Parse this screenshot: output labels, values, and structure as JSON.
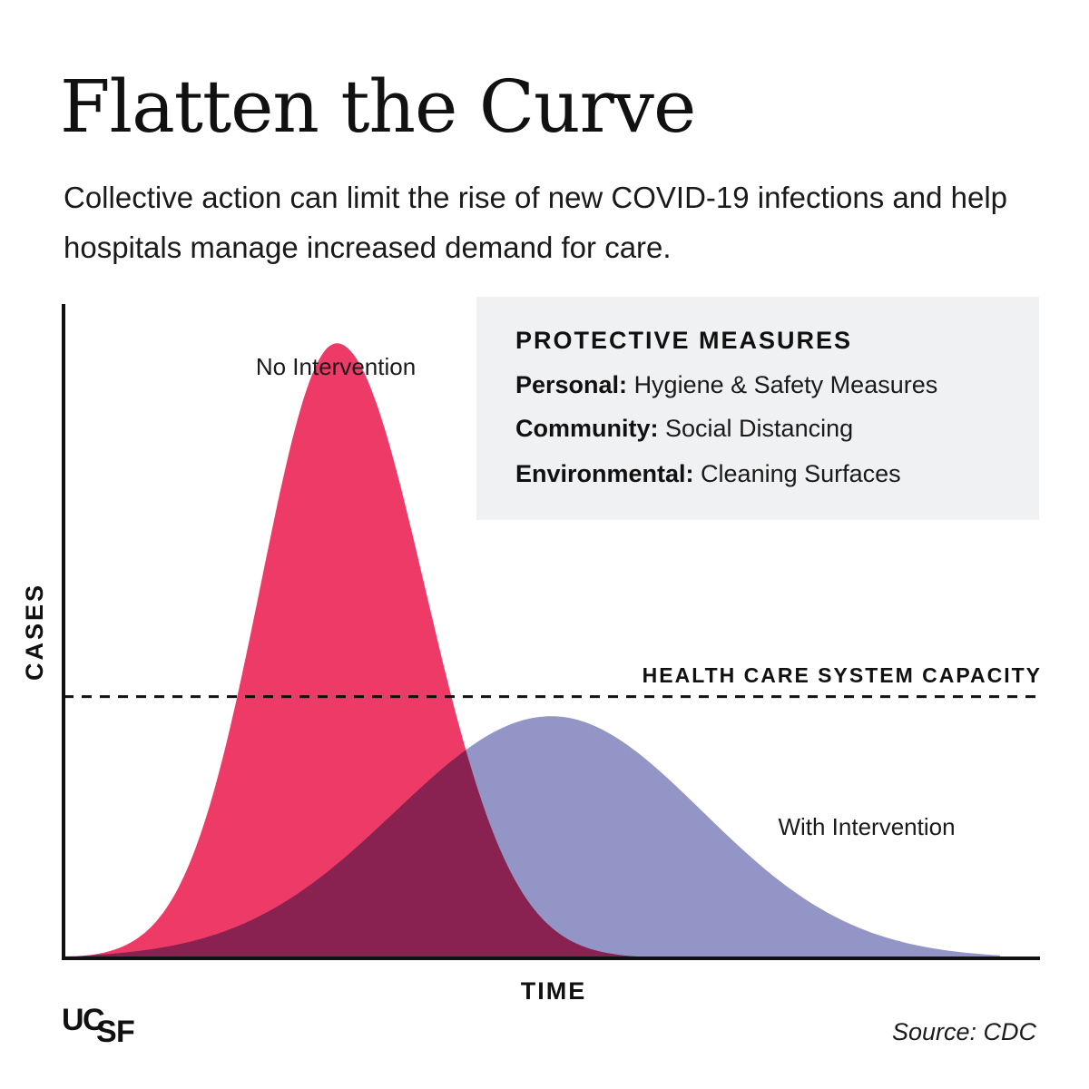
{
  "title": "Flatten the Curve",
  "subtitle": "Collective action can limit the rise of new COVID-19 infections and help hospitals manage increased demand for care.",
  "measures": {
    "heading": "PROTECTIVE MEASURES",
    "items": [
      {
        "label": "Personal:",
        "text": "Hygiene & Safety Measures"
      },
      {
        "label": "Community:",
        "text": "Social Distancing"
      },
      {
        "label": "Environmental:",
        "text": "Cleaning Surfaces"
      }
    ]
  },
  "source": "Source: CDC",
  "logo": {
    "text": "UCSF",
    "letters": [
      "U",
      "C",
      "S",
      "F"
    ]
  },
  "colors": {
    "no_intervention": "#ee3a66",
    "with_intervention": "#8a8cc2",
    "axis": "#111111"
  },
  "chart_data": {
    "type": "area",
    "xlabel": "TIME",
    "ylabel": "CASES",
    "x_ticks": false,
    "y_ticks": false,
    "series": [
      {
        "name": "No Intervention",
        "shape": "sharp-peak",
        "peak_x": 0.28,
        "peak_y": 0.94
      },
      {
        "name": "With Intervention",
        "shape": "flat-peak",
        "peak_x": 0.5,
        "peak_y": 0.37
      }
    ],
    "reference_line": {
      "label": "HEALTH CARE SYSTEM CAPACITY",
      "y": 0.4,
      "style": "dashed"
    },
    "xlim": [
      0,
      1
    ],
    "ylim": [
      0,
      1
    ]
  }
}
